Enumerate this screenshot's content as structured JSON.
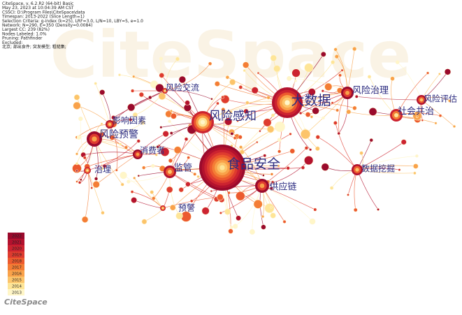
{
  "header": {
    "lines": [
      "CiteSpace, v. 6.2.R2 (64-bit) Basic",
      "May 23, 2023 at 10:04:39 AM CST",
      "CSSCI: D:\\Program Files\\CiteSpace\\data",
      "Timespan: 2013-2022 (Slice Length=1)",
      "Selection Criteria: g-index (k=25), LRF=3.0, L/N=10, LBY=5, e=1.0",
      "Network: N=290, E=350 (Density=0.0084)",
      "Largest CC: 239 (82%)",
      "Nodes Labeled: 1.0%",
      "Pruning: Pathfinder",
      "Excluded:",
      "北京; 部出食件; 突发模型; 粗糙集;"
    ]
  },
  "watermark": "CiteSpace",
  "nodes": [
    {
      "label": "食品安全"
    },
    {
      "label": "大数据"
    },
    {
      "label": "风险感知"
    },
    {
      "label": "风险治理"
    },
    {
      "label": "风险评估"
    },
    {
      "label": "社会共治"
    },
    {
      "label": "风险预警"
    },
    {
      "label": "影响因素"
    },
    {
      "label": "风险交流"
    },
    {
      "label": "消费者"
    },
    {
      "label": "监管"
    },
    {
      "label": "治理"
    },
    {
      "label": "供应链"
    },
    {
      "label": "数据挖掘"
    },
    {
      "label": "预警"
    }
  ],
  "legend": {
    "years": [
      "2022",
      "2021",
      "2020",
      "2019",
      "2018",
      "2017",
      "2016",
      "2015",
      "2014",
      "2013"
    ]
  },
  "logo": "CiteSpace"
}
